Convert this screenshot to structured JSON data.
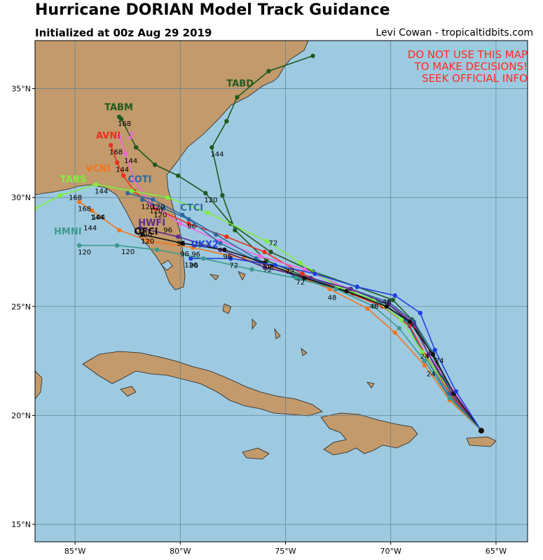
{
  "header": {
    "title": "Hurricane DORIAN Model Track Guidance",
    "initialized": "Initialized at 00z Aug 29 2019",
    "credit": "Levi Cowan - tropicaltidbits.com"
  },
  "warning": [
    "DO NOT USE THIS MAP",
    "TO MAKE DECISIONS!",
    "SEEK OFFICIAL INFO"
  ],
  "colors": {
    "ocean": "#9ecae1",
    "land": "#c29a6b",
    "warning": "#ff2a1f"
  },
  "map": {
    "lon_range": [
      -86.9,
      -63.5
    ],
    "lat_range": [
      14.2,
      37.2
    ],
    "lon_ticks": [
      {
        "value": -85,
        "label": "85°W"
      },
      {
        "value": -80,
        "label": "80°W"
      },
      {
        "value": -75,
        "label": "75°W"
      },
      {
        "value": -70,
        "label": "70°W"
      },
      {
        "value": -65,
        "label": "65°W"
      }
    ],
    "lat_ticks": [
      {
        "value": 15,
        "label": "15°N"
      },
      {
        "value": 20,
        "label": "20°N"
      },
      {
        "value": 25,
        "label": "25°N"
      },
      {
        "value": 30,
        "label": "30°N"
      },
      {
        "value": 35,
        "label": "35°N"
      }
    ],
    "storm_origin": [
      -65.7,
      19.3
    ],
    "gridlines": true
  },
  "tracks": [
    {
      "name": "TABD",
      "color": "#1f5a1f",
      "points": [
        [
          -65.7,
          19.3
        ],
        [
          -67.2,
          21.0
        ],
        [
          -68.2,
          22.8
        ],
        [
          -69.0,
          24.2
        ],
        [
          -70.1,
          25.1
        ],
        [
          -71.8,
          25.6
        ],
        [
          -73.9,
          26.3
        ],
        [
          -75.9,
          27.1
        ],
        [
          -77.4,
          28.5
        ],
        [
          -78.0,
          30.1
        ],
        [
          -78.5,
          32.3
        ],
        [
          -77.8,
          33.5
        ],
        [
          -77.3,
          34.6
        ],
        [
          -75.8,
          35.8
        ],
        [
          -73.7,
          36.5
        ]
      ],
      "hours": [
        {
          "i": 7,
          "text": "96"
        },
        {
          "i": 10,
          "text": "144"
        }
      ],
      "label": {
        "text": "TABD",
        "lon": -77.8,
        "lat": 35.1
      }
    },
    {
      "name": "TABM",
      "color": "#1f5a1f",
      "points": [
        [
          -65.7,
          19.3
        ],
        [
          -67.1,
          21.0
        ],
        [
          -68.1,
          22.9
        ],
        [
          -69.0,
          24.4
        ],
        [
          -69.9,
          25.3
        ],
        [
          -71.6,
          25.9
        ],
        [
          -73.7,
          26.6
        ],
        [
          -75.7,
          27.5
        ],
        [
          -77.6,
          28.8
        ],
        [
          -78.8,
          30.2
        ],
        [
          -80.1,
          31.0
        ],
        [
          -81.2,
          31.5
        ],
        [
          -82.1,
          32.3
        ],
        [
          -82.8,
          33.6
        ],
        [
          -82.9,
          33.7
        ]
      ],
      "hours": [
        {
          "i": 9,
          "text": "120"
        },
        {
          "i": 14,
          "text": "168"
        }
      ],
      "label": {
        "text": "TABM",
        "lon": -83.6,
        "lat": 34.0
      }
    },
    {
      "name": "AVNI",
      "color": "#e8301e",
      "points": [
        [
          -65.7,
          19.3
        ],
        [
          -67.2,
          21.0
        ],
        [
          -68.3,
          22.7
        ],
        [
          -69.1,
          24.1
        ],
        [
          -70.4,
          25.0
        ],
        [
          -72.2,
          25.7
        ],
        [
          -74.2,
          26.5
        ],
        [
          -76.0,
          27.5
        ],
        [
          -77.8,
          28.2
        ],
        [
          -79.6,
          28.8
        ],
        [
          -81.2,
          29.5
        ],
        [
          -82.2,
          30.3
        ],
        [
          -82.7,
          31.0
        ],
        [
          -83.0,
          31.6
        ],
        [
          -83.3,
          32.4
        ]
      ],
      "hours": [
        {
          "i": 10,
          "text": "120"
        },
        {
          "i": 13,
          "text": "144"
        },
        {
          "i": 14,
          "text": "168"
        }
      ],
      "label": {
        "text": "AVNI",
        "lon": -84.0,
        "lat": 32.7
      }
    },
    {
      "name": "AVNI2",
      "color": "#ee66dd",
      "points": [
        [
          -65.7,
          19.3
        ],
        [
          -67.0,
          21.1
        ],
        [
          -68.2,
          22.8
        ],
        [
          -69.0,
          24.3
        ],
        [
          -70.1,
          25.2
        ],
        [
          -72.0,
          25.8
        ],
        [
          -74.1,
          26.7
        ],
        [
          -76.2,
          27.3
        ],
        [
          -78.1,
          28.0
        ],
        [
          -80.0,
          28.8
        ],
        [
          -81.4,
          29.7
        ],
        [
          -82.2,
          30.8
        ],
        [
          -82.6,
          32.0
        ],
        [
          -82.9,
          32.8
        ]
      ],
      "hours": [
        {
          "i": 10,
          "text": "120"
        },
        {
          "i": 12,
          "text": "144"
        }
      ],
      "label": {
        "text": "2",
        "lon": -82.5,
        "lat": 32.7
      }
    },
    {
      "name": "CTCI",
      "color": "#2d6aa0",
      "points": [
        [
          -65.7,
          19.3
        ],
        [
          -67.1,
          21.0
        ],
        [
          -68.0,
          22.9
        ],
        [
          -68.9,
          24.3
        ],
        [
          -70.1,
          25.2
        ],
        [
          -71.9,
          25.8
        ],
        [
          -74.1,
          26.3
        ],
        [
          -76.2,
          27.0
        ],
        [
          -78.1,
          27.9
        ],
        [
          -79.6,
          29.0
        ],
        [
          -80.8,
          29.5
        ],
        [
          -81.8,
          29.9
        ]
      ],
      "hours": [
        {
          "i": 9,
          "text": "96"
        },
        {
          "i": 11,
          "text": "120"
        }
      ],
      "label": {
        "text": "CTCI",
        "lon": -80.0,
        "lat": 29.4
      }
    },
    {
      "name": "COTI",
      "color": "#2d6aa0",
      "points": [
        [
          -65.7,
          19.3
        ],
        [
          -67.3,
          21.0
        ],
        [
          -68.5,
          22.9
        ],
        [
          -69.3,
          24.4
        ],
        [
          -70.7,
          25.3
        ],
        [
          -72.6,
          25.8
        ],
        [
          -74.6,
          26.4
        ],
        [
          -76.4,
          27.2
        ],
        [
          -78.3,
          28.3
        ],
        [
          -79.9,
          29.2
        ],
        [
          -81.3,
          29.9
        ],
        [
          -82.5,
          30.2
        ]
      ],
      "hours": [
        {
          "i": 10,
          "text": "120"
        }
      ],
      "label": {
        "text": "COTI",
        "lon": -82.5,
        "lat": 30.7
      }
    },
    {
      "name": "TABS",
      "color": "#7ef03c",
      "points": [
        [
          -65.7,
          19.3
        ],
        [
          -67.1,
          21.0
        ],
        [
          -68.5,
          22.9
        ],
        [
          -69.5,
          24.4
        ],
        [
          -70.8,
          25.3
        ],
        [
          -72.5,
          25.9
        ],
        [
          -74.3,
          27.0
        ],
        [
          -75.9,
          28.0
        ],
        [
          -78.7,
          29.3
        ],
        [
          -80.6,
          30.0
        ],
        [
          -82.3,
          30.3
        ],
        [
          -84.0,
          30.6
        ],
        [
          -85.7,
          30.1
        ],
        [
          -86.9,
          29.5
        ]
      ],
      "hours": [
        {
          "i": 11,
          "text": "144"
        }
      ],
      "label": {
        "text": "TABS",
        "lon": -85.7,
        "lat": 30.7
      }
    },
    {
      "name": "TVCN",
      "color": "#f2751e",
      "points": [
        [
          -65.7,
          19.3
        ],
        [
          -67.2,
          20.7
        ],
        [
          -68.4,
          22.3
        ],
        [
          -69.8,
          23.8
        ],
        [
          -71.1,
          24.9
        ],
        [
          -72.9,
          25.8
        ],
        [
          -74.9,
          26.6
        ],
        [
          -77.0,
          27.2
        ],
        [
          -79.4,
          27.7
        ],
        [
          -81.5,
          28.0
        ],
        [
          -82.9,
          28.5
        ],
        [
          -84.2,
          29.4
        ],
        [
          -84.8,
          29.8
        ]
      ],
      "hours": [
        {
          "i": 8,
          "text": "96"
        },
        {
          "i": 11,
          "text": "144"
        },
        {
          "i": 12,
          "text": "168"
        }
      ],
      "label": {
        "text": "VCNI",
        "lon": -84.5,
        "lat": 31.2
      }
    },
    {
      "name": "HWFI",
      "color": "#5a2d8c",
      "points": [
        [
          -65.7,
          19.3
        ],
        [
          -67.1,
          21.0
        ],
        [
          -68.2,
          22.8
        ],
        [
          -68.9,
          24.2
        ],
        [
          -70.1,
          25.1
        ],
        [
          -71.9,
          25.8
        ],
        [
          -73.8,
          26.3
        ],
        [
          -76.0,
          26.8
        ],
        [
          -78.1,
          27.6
        ],
        [
          -80.1,
          28.2
        ],
        [
          -81.9,
          28.6
        ]
      ],
      "hours": [
        {
          "i": 9,
          "text": "96"
        },
        {
          "i": 10,
          "text": "120"
        }
      ],
      "label": {
        "text": "HWFI",
        "lon": -82.0,
        "lat": 28.7
      }
    },
    {
      "name": "OFCI",
      "color": "#111111",
      "points": [
        [
          -65.7,
          19.3
        ],
        [
          -67.0,
          21.0
        ],
        [
          -68.0,
          22.8
        ],
        [
          -69.1,
          24.3
        ],
        [
          -70.2,
          25.0
        ],
        [
          -72.1,
          25.7
        ],
        [
          -74.1,
          26.3
        ],
        [
          -76.0,
          27.0
        ],
        [
          -77.9,
          27.6
        ],
        [
          -79.9,
          27.9
        ],
        [
          -81.8,
          28.3
        ]
      ],
      "hours": [
        {
          "i": 7,
          "text": "72"
        },
        {
          "i": 8,
          "text": "96"
        },
        {
          "i": 10,
          "text": "120"
        }
      ],
      "label": {
        "text": "OFCI",
        "lon": -82.2,
        "lat": 28.3
      }
    },
    {
      "name": "UKX2",
      "color": "#1f3fe0",
      "points": [
        [
          -65.7,
          19.3
        ],
        [
          -66.9,
          21.1
        ],
        [
          -67.9,
          23.0
        ],
        [
          -68.6,
          24.7
        ],
        [
          -69.8,
          25.5
        ],
        [
          -71.6,
          25.9
        ],
        [
          -73.6,
          26.5
        ],
        [
          -75.5,
          26.9
        ],
        [
          -77.6,
          27.2
        ],
        [
          -79.5,
          27.2
        ]
      ],
      "hours": [
        {
          "i": 8,
          "text": "72"
        },
        {
          "i": 9,
          "text": "96"
        }
      ],
      "label": {
        "text": "UKX2",
        "lon": -79.5,
        "lat": 27.7
      }
    },
    {
      "name": "HMNI",
      "color": "#3c9a8c",
      "points": [
        [
          -65.7,
          19.3
        ],
        [
          -67.2,
          20.8
        ],
        [
          -68.4,
          22.5
        ],
        [
          -69.6,
          24.0
        ],
        [
          -70.8,
          25.0
        ],
        [
          -72.6,
          25.8
        ],
        [
          -74.5,
          26.3
        ],
        [
          -76.6,
          26.7
        ],
        [
          -78.9,
          27.2
        ],
        [
          -81.1,
          27.6
        ],
        [
          -83.0,
          27.8
        ],
        [
          -84.8,
          27.8
        ]
      ],
      "hours": [
        {
          "i": 11,
          "text": "120"
        }
      ],
      "label": {
        "text": "HMNI",
        "lon": -86.0,
        "lat": 28.3
      }
    }
  ],
  "hour_labels": [
    {
      "text": "24",
      "lon": -67.9,
      "lat": 22.4
    },
    {
      "text": "24",
      "lon": -68.6,
      "lat": 22.6
    },
    {
      "text": "24",
      "lon": -68.3,
      "lat": 21.8
    },
    {
      "text": "48",
      "lon": -71.0,
      "lat": 24.9
    },
    {
      "text": "48",
      "lon": -73.0,
      "lat": 25.3
    },
    {
      "text": "48",
      "lon": -70.4,
      "lat": 25.1
    },
    {
      "text": "72",
      "lon": -74.5,
      "lat": 26.0
    },
    {
      "text": "72",
      "lon": -75.8,
      "lat": 27.8
    },
    {
      "text": "72",
      "lon": -75.0,
      "lat": 26.5
    },
    {
      "text": "96",
      "lon": -80.8,
      "lat": 28.4
    },
    {
      "text": "96",
      "lon": -80.0,
      "lat": 27.3
    },
    {
      "text": "120",
      "lon": -79.8,
      "lat": 26.8
    },
    {
      "text": "120",
      "lon": -82.8,
      "lat": 27.4
    },
    {
      "text": "144",
      "lon": -84.6,
      "lat": 28.5
    },
    {
      "text": "144",
      "lon": -84.2,
      "lat": 29.0
    },
    {
      "text": "168",
      "lon": -85.3,
      "lat": 29.9
    }
  ]
}
